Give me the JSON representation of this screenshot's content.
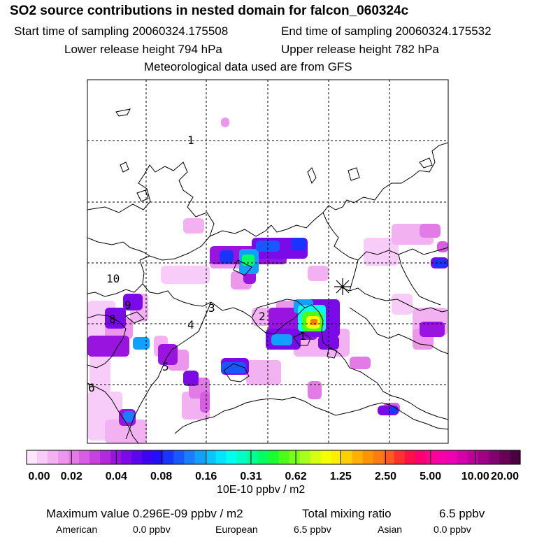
{
  "header": {
    "title": "SO2 source contributions in nested domain for falcon_060324c",
    "start": "Start time of sampling 20060324.175508",
    "end": "End time of sampling 20060324.175532",
    "lower": "Lower release height  794 hPa",
    "upper": "Upper release height  782 hPa",
    "met": "Meteorological data used are from GFS"
  },
  "chart_data": {
    "type": "heatmap",
    "grid": true,
    "contour_labels": [
      "1",
      "10",
      "9",
      "8",
      "3",
      "4",
      "2",
      "1",
      "5",
      "6"
    ],
    "colorbar": {
      "ticks": [
        "0.00",
        "0.02",
        "0.04",
        "0.08",
        "0.16",
        "0.31",
        "0.62",
        "1.25",
        "2.50",
        "5.00",
        "10.00",
        "20.00"
      ],
      "colors": [
        "#fde6fd",
        "#f8ccf8",
        "#f2b2f2",
        "#ec97ec",
        "#e27be6",
        "#d55ee3",
        "#c642e0",
        "#b22add",
        "#9a14e0",
        "#7a0ae8",
        "#5a06ee",
        "#3c03f4",
        "#2210fb",
        "#1a34ff",
        "#1a58ff",
        "#1a7cff",
        "#12a0ff",
        "#0ac4ff",
        "#02e4ff",
        "#00ffee",
        "#00ffc4",
        "#00ff94",
        "#00ff64",
        "#18ff30",
        "#4aff18",
        "#7aff18",
        "#a8ff18",
        "#d4ff10",
        "#f4ff00",
        "#ffee00",
        "#ffd000",
        "#ffb000",
        "#ff9400",
        "#ff7a10",
        "#ff5820",
        "#ff3030",
        "#ff1048",
        "#ff0070",
        "#ff0094",
        "#f800a8",
        "#ec00b0",
        "#d400a8",
        "#bc0098",
        "#a00084",
        "#840070",
        "#680058",
        "#4c0040"
      ],
      "units": "10E-10 ppbv / m2"
    },
    "marker": "source-asterisk"
  },
  "summary": {
    "max_label": "Maximum value  0.296E-09 ppbv / m2",
    "total_label": "Total mixing ratio",
    "total_value": "6.5 ppbv",
    "regions": [
      {
        "name": "American",
        "value": "0.0 ppbv"
      },
      {
        "name": "European",
        "value": "6.5 ppbv"
      },
      {
        "name": "Asian",
        "value": "0.0 ppbv"
      }
    ]
  }
}
